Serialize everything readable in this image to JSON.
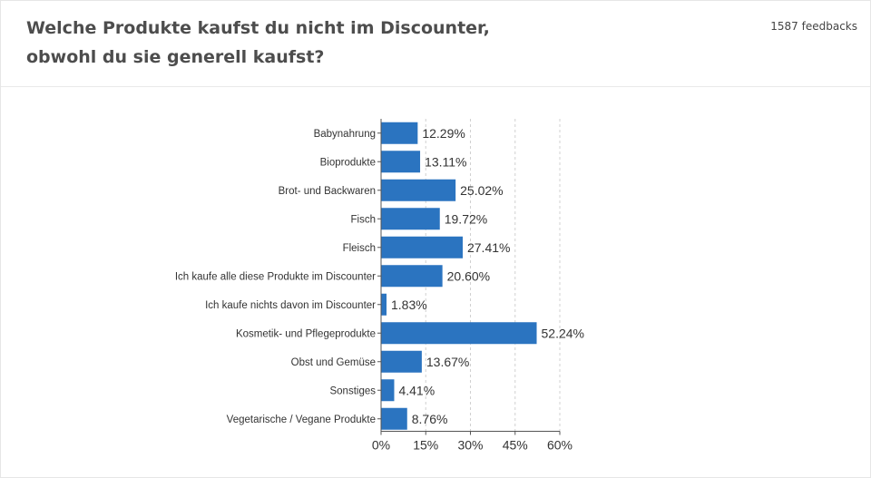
{
  "header": {
    "title_line1": "Welche Produkte kaufst du nicht im Discounter,",
    "title_line2": "obwohl du sie generell kaufst?",
    "feedbacks": "1587 feedbacks"
  },
  "colors": {
    "bar": "#2b74c0",
    "grid": "#d0d0d0",
    "axis": "#555555"
  },
  "chart_data": {
    "type": "bar",
    "orientation": "horizontal",
    "categories": [
      "Babynahrung",
      "Bioprodukte",
      "Brot- und Backwaren",
      "Fisch",
      "Fleisch",
      "Ich kaufe alle diese Produkte im Discounter",
      "Ich kaufe nichts davon im Discounter",
      "Kosmetik- und Pflegeprodukte",
      "Obst und Gemüse",
      "Sonstiges",
      "Vegetarische / Vegane Produkte"
    ],
    "values": [
      12.29,
      13.11,
      25.02,
      19.72,
      27.41,
      20.6,
      1.83,
      52.24,
      13.67,
      4.41,
      8.76
    ],
    "value_labels": [
      "12.29%",
      "13.11%",
      "25.02%",
      "19.72%",
      "27.41%",
      "20.60%",
      "1.83%",
      "52.24%",
      "13.67%",
      "4.41%",
      "8.76%"
    ],
    "xticks": [
      0,
      15,
      30,
      45,
      60
    ],
    "xtick_labels": [
      "0%",
      "15%",
      "30%",
      "45%",
      "60%"
    ],
    "xlim": [
      0,
      60
    ],
    "grid": true
  }
}
